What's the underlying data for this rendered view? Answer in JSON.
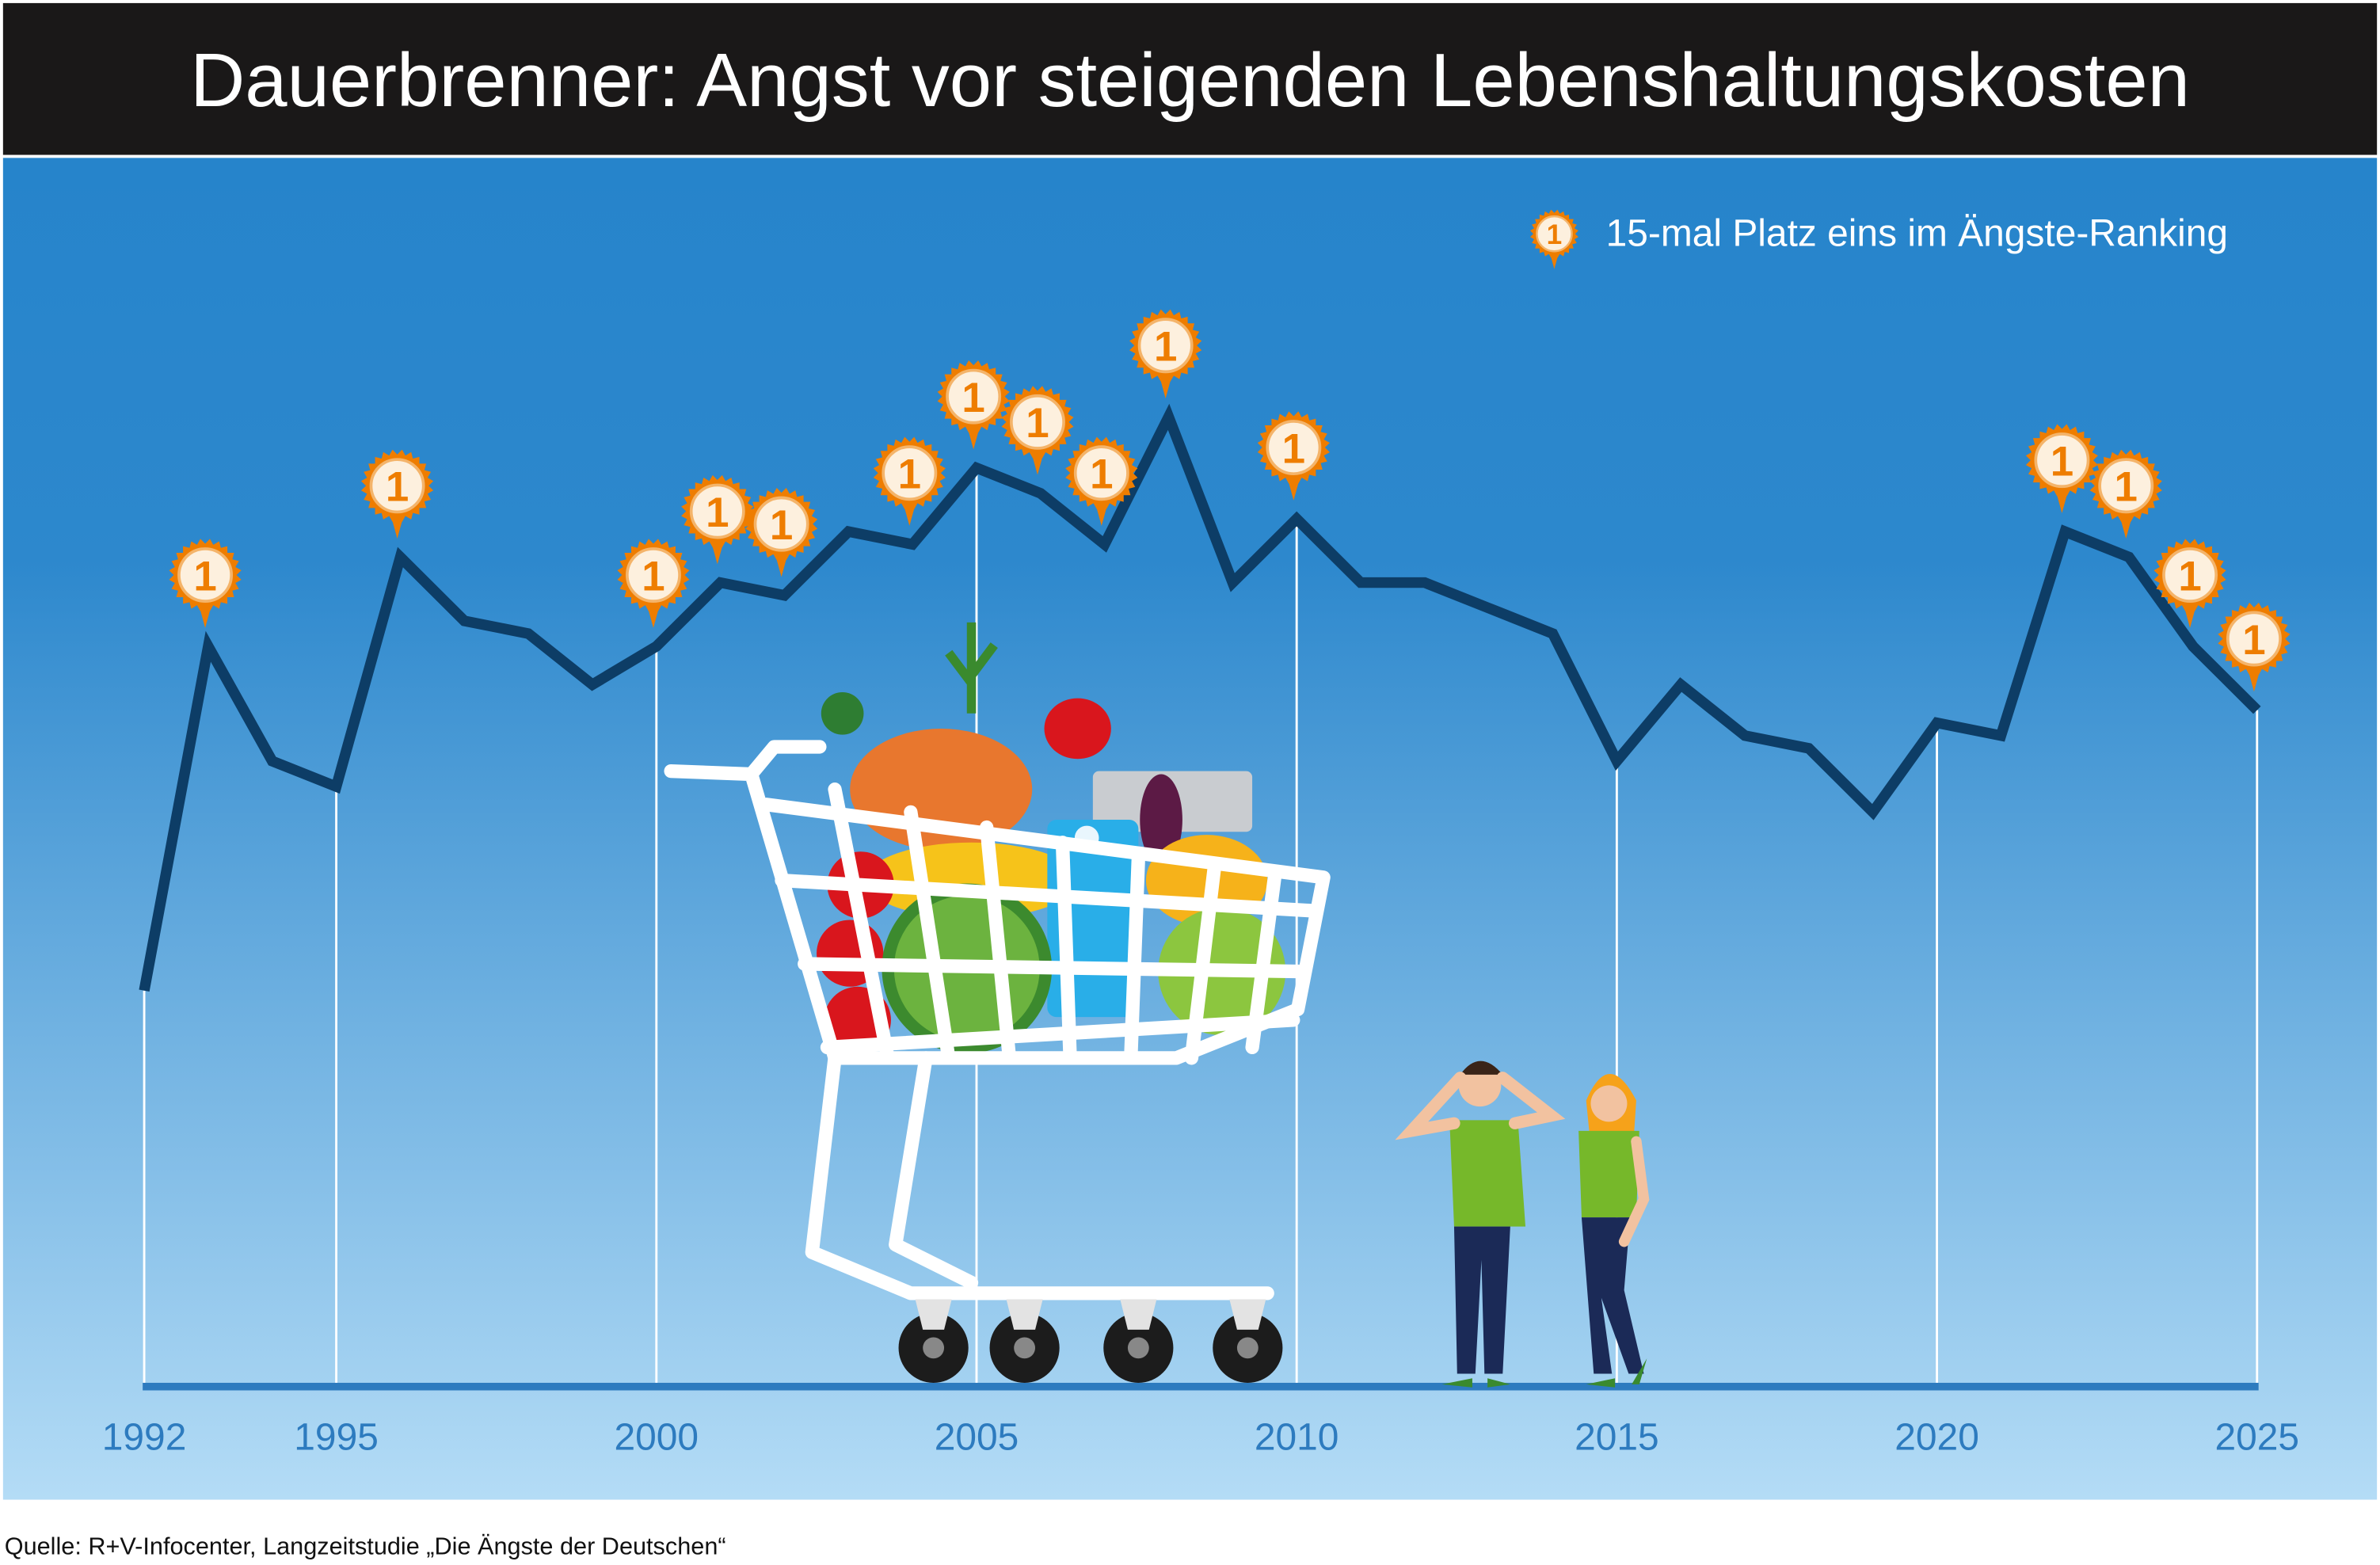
{
  "title": "Dauerbrenner: Angst vor steigenden Lebenshaltungskosten",
  "legend": {
    "badge_label": "1",
    "text": "15-mal Platz eins im Ängste-Ranking"
  },
  "source": "Quelle: R+V-Infocenter, Langzeitstudie „Die Ängste der Deutschen“",
  "colors": {
    "title_bg": "#1a1818",
    "bg_top": "#2684cb",
    "bg_bottom": "#b4dcf6",
    "line": "#0d3d66",
    "axis": "#2d7bbf",
    "tick_text": "#2d7bbf",
    "badge": "#ee7d00",
    "badge_inner": "#fdf0de"
  },
  "chart_data": {
    "type": "line",
    "title": "Dauerbrenner: Angst vor steigenden Lebenshaltungskosten",
    "xlabel": "",
    "ylabel": "",
    "x": [
      1992,
      1993,
      1994,
      1995,
      1996,
      1997,
      1998,
      1999,
      2000,
      2001,
      2002,
      2003,
      2004,
      2005,
      2006,
      2007,
      2008,
      2009,
      2010,
      2011,
      2012,
      2013,
      2014,
      2015,
      2016,
      2017,
      2018,
      2019,
      2020,
      2021,
      2022,
      2023,
      2024,
      2025
    ],
    "series": [
      {
        "name": "Angst vor steigenden Lebenshaltungskosten (%)",
        "values": [
          31,
          58,
          49,
          47,
          65,
          60,
          59,
          55,
          58,
          63,
          62,
          67,
          66,
          72,
          70,
          66,
          76,
          63,
          68,
          63,
          63,
          61,
          59,
          49,
          55,
          51,
          50,
          45,
          52,
          51,
          67,
          65,
          58,
          53
        ]
      }
    ],
    "rank_one_years": [
      1993,
      1996,
      2000,
      2001,
      2002,
      2004,
      2005,
      2006,
      2007,
      2008,
      2010,
      2022,
      2023,
      2024,
      2025
    ],
    "x_ticks": [
      1992,
      1995,
      2000,
      2005,
      2010,
      2015,
      2020,
      2025
    ],
    "ylim": [
      0,
      100
    ],
    "grid": "vertical at x_ticks",
    "legend_position": "top-right"
  }
}
